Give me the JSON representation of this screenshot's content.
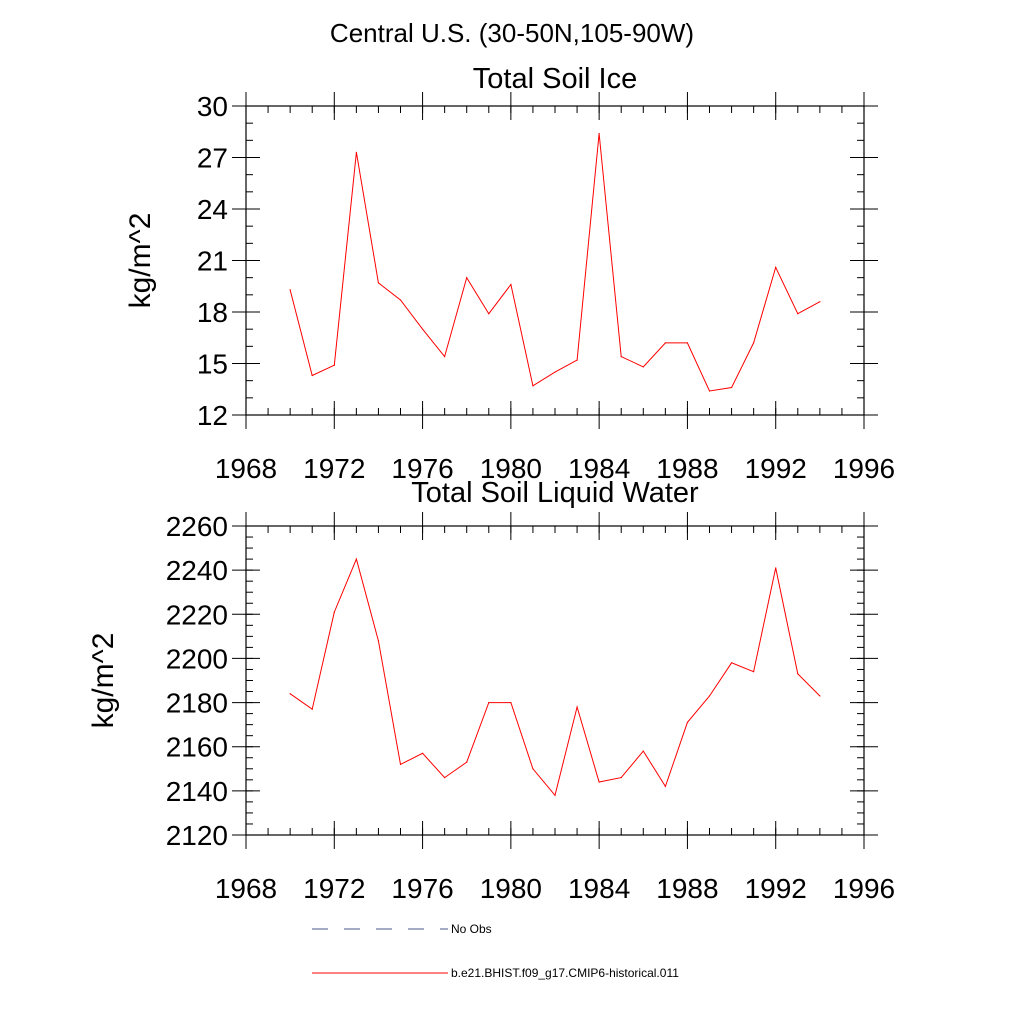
{
  "figure": {
    "main_title": "Central U.S. (30-50N,105-90W)"
  },
  "legend": {
    "entries": [
      {
        "label": "No Obs",
        "color": "#4a5a8a",
        "dash": true
      },
      {
        "label": "b.e21.BHIST.f09_g17.CMIP6-historical.011",
        "color": "#ff0000",
        "dash": false
      }
    ]
  },
  "chart_data": [
    {
      "type": "line",
      "title": "Total Soil Ice",
      "xlabel": "",
      "ylabel": "kg/m^2",
      "xlim": [
        1968,
        1996
      ],
      "ylim": [
        12,
        30
      ],
      "xticks": [
        1968,
        1972,
        1976,
        1980,
        1984,
        1988,
        1992,
        1996
      ],
      "yticks": [
        12,
        15,
        18,
        21,
        24,
        27,
        30
      ],
      "y_minor_step": 1,
      "x_minor_step": 1,
      "grid": false,
      "series": [
        {
          "name": "b.e21.BHIST.f09_g17.CMIP6-historical.011",
          "color": "#ff0000",
          "x": [
            1970,
            1971,
            1972,
            1973,
            1974,
            1975,
            1976,
            1977,
            1978,
            1979,
            1980,
            1981,
            1982,
            1983,
            1984,
            1985,
            1986,
            1987,
            1988,
            1989,
            1990,
            1991,
            1992,
            1993,
            1994
          ],
          "y": [
            19.3,
            14.3,
            14.9,
            27.3,
            19.7,
            18.7,
            17.0,
            15.4,
            20.0,
            17.9,
            19.6,
            13.7,
            14.5,
            15.2,
            28.4,
            15.4,
            14.8,
            16.2,
            16.2,
            13.4,
            13.6,
            16.2,
            20.6,
            17.9,
            18.6
          ]
        }
      ]
    },
    {
      "type": "line",
      "title": "Total Soil Liquid Water",
      "xlabel": "",
      "ylabel": "kg/m^2",
      "xlim": [
        1968,
        1996
      ],
      "ylim": [
        2120,
        2260
      ],
      "xticks": [
        1968,
        1972,
        1976,
        1980,
        1984,
        1988,
        1992,
        1996
      ],
      "yticks": [
        2120,
        2140,
        2160,
        2180,
        2200,
        2220,
        2240,
        2260
      ],
      "y_minor_step": 5,
      "x_minor_step": 1,
      "grid": false,
      "series": [
        {
          "name": "b.e21.BHIST.f09_g17.CMIP6-historical.011",
          "color": "#ff0000",
          "x": [
            1970,
            1971,
            1972,
            1973,
            1974,
            1975,
            1976,
            1977,
            1978,
            1979,
            1980,
            1981,
            1982,
            1983,
            1984,
            1985,
            1986,
            1987,
            1988,
            1989,
            1990,
            1991,
            1992,
            1993,
            1994
          ],
          "y": [
            2184,
            2177,
            2221,
            2245,
            2208,
            2152,
            2157,
            2146,
            2153,
            2180,
            2180,
            2150,
            2138,
            2178,
            2144,
            2146,
            2158,
            2142,
            2171,
            2183,
            2198,
            2194,
            2241,
            2193,
            2183
          ]
        }
      ]
    }
  ]
}
